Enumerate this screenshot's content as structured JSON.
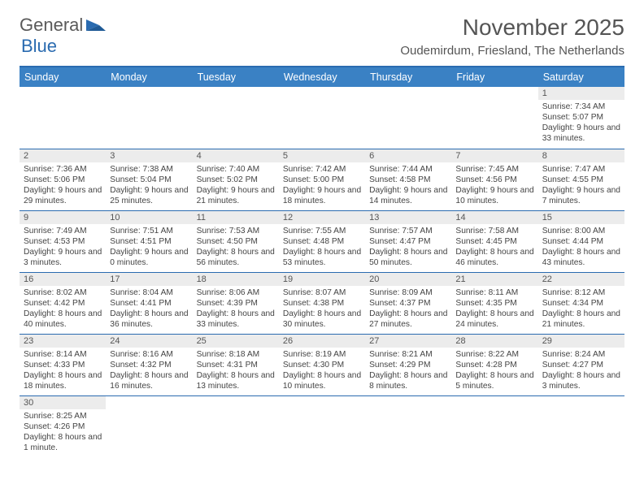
{
  "logo": {
    "part1": "General",
    "part2": "Blue"
  },
  "title": "November 2025",
  "location": "Oudemirdum, Friesland, The Netherlands",
  "colors": {
    "header_bg": "#3a81c4",
    "divider": "#2a6bb0",
    "daynum_bg": "#ececec",
    "text": "#444444"
  },
  "day_headers": [
    "Sunday",
    "Monday",
    "Tuesday",
    "Wednesday",
    "Thursday",
    "Friday",
    "Saturday"
  ],
  "weeks": [
    [
      null,
      null,
      null,
      null,
      null,
      null,
      {
        "n": "1",
        "sr": "Sunrise: 7:34 AM",
        "ss": "Sunset: 5:07 PM",
        "dl": "Daylight: 9 hours and 33 minutes."
      }
    ],
    [
      {
        "n": "2",
        "sr": "Sunrise: 7:36 AM",
        "ss": "Sunset: 5:06 PM",
        "dl": "Daylight: 9 hours and 29 minutes."
      },
      {
        "n": "3",
        "sr": "Sunrise: 7:38 AM",
        "ss": "Sunset: 5:04 PM",
        "dl": "Daylight: 9 hours and 25 minutes."
      },
      {
        "n": "4",
        "sr": "Sunrise: 7:40 AM",
        "ss": "Sunset: 5:02 PM",
        "dl": "Daylight: 9 hours and 21 minutes."
      },
      {
        "n": "5",
        "sr": "Sunrise: 7:42 AM",
        "ss": "Sunset: 5:00 PM",
        "dl": "Daylight: 9 hours and 18 minutes."
      },
      {
        "n": "6",
        "sr": "Sunrise: 7:44 AM",
        "ss": "Sunset: 4:58 PM",
        "dl": "Daylight: 9 hours and 14 minutes."
      },
      {
        "n": "7",
        "sr": "Sunrise: 7:45 AM",
        "ss": "Sunset: 4:56 PM",
        "dl": "Daylight: 9 hours and 10 minutes."
      },
      {
        "n": "8",
        "sr": "Sunrise: 7:47 AM",
        "ss": "Sunset: 4:55 PM",
        "dl": "Daylight: 9 hours and 7 minutes."
      }
    ],
    [
      {
        "n": "9",
        "sr": "Sunrise: 7:49 AM",
        "ss": "Sunset: 4:53 PM",
        "dl": "Daylight: 9 hours and 3 minutes."
      },
      {
        "n": "10",
        "sr": "Sunrise: 7:51 AM",
        "ss": "Sunset: 4:51 PM",
        "dl": "Daylight: 9 hours and 0 minutes."
      },
      {
        "n": "11",
        "sr": "Sunrise: 7:53 AM",
        "ss": "Sunset: 4:50 PM",
        "dl": "Daylight: 8 hours and 56 minutes."
      },
      {
        "n": "12",
        "sr": "Sunrise: 7:55 AM",
        "ss": "Sunset: 4:48 PM",
        "dl": "Daylight: 8 hours and 53 minutes."
      },
      {
        "n": "13",
        "sr": "Sunrise: 7:57 AM",
        "ss": "Sunset: 4:47 PM",
        "dl": "Daylight: 8 hours and 50 minutes."
      },
      {
        "n": "14",
        "sr": "Sunrise: 7:58 AM",
        "ss": "Sunset: 4:45 PM",
        "dl": "Daylight: 8 hours and 46 minutes."
      },
      {
        "n": "15",
        "sr": "Sunrise: 8:00 AM",
        "ss": "Sunset: 4:44 PM",
        "dl": "Daylight: 8 hours and 43 minutes."
      }
    ],
    [
      {
        "n": "16",
        "sr": "Sunrise: 8:02 AM",
        "ss": "Sunset: 4:42 PM",
        "dl": "Daylight: 8 hours and 40 minutes."
      },
      {
        "n": "17",
        "sr": "Sunrise: 8:04 AM",
        "ss": "Sunset: 4:41 PM",
        "dl": "Daylight: 8 hours and 36 minutes."
      },
      {
        "n": "18",
        "sr": "Sunrise: 8:06 AM",
        "ss": "Sunset: 4:39 PM",
        "dl": "Daylight: 8 hours and 33 minutes."
      },
      {
        "n": "19",
        "sr": "Sunrise: 8:07 AM",
        "ss": "Sunset: 4:38 PM",
        "dl": "Daylight: 8 hours and 30 minutes."
      },
      {
        "n": "20",
        "sr": "Sunrise: 8:09 AM",
        "ss": "Sunset: 4:37 PM",
        "dl": "Daylight: 8 hours and 27 minutes."
      },
      {
        "n": "21",
        "sr": "Sunrise: 8:11 AM",
        "ss": "Sunset: 4:35 PM",
        "dl": "Daylight: 8 hours and 24 minutes."
      },
      {
        "n": "22",
        "sr": "Sunrise: 8:12 AM",
        "ss": "Sunset: 4:34 PM",
        "dl": "Daylight: 8 hours and 21 minutes."
      }
    ],
    [
      {
        "n": "23",
        "sr": "Sunrise: 8:14 AM",
        "ss": "Sunset: 4:33 PM",
        "dl": "Daylight: 8 hours and 18 minutes."
      },
      {
        "n": "24",
        "sr": "Sunrise: 8:16 AM",
        "ss": "Sunset: 4:32 PM",
        "dl": "Daylight: 8 hours and 16 minutes."
      },
      {
        "n": "25",
        "sr": "Sunrise: 8:18 AM",
        "ss": "Sunset: 4:31 PM",
        "dl": "Daylight: 8 hours and 13 minutes."
      },
      {
        "n": "26",
        "sr": "Sunrise: 8:19 AM",
        "ss": "Sunset: 4:30 PM",
        "dl": "Daylight: 8 hours and 10 minutes."
      },
      {
        "n": "27",
        "sr": "Sunrise: 8:21 AM",
        "ss": "Sunset: 4:29 PM",
        "dl": "Daylight: 8 hours and 8 minutes."
      },
      {
        "n": "28",
        "sr": "Sunrise: 8:22 AM",
        "ss": "Sunset: 4:28 PM",
        "dl": "Daylight: 8 hours and 5 minutes."
      },
      {
        "n": "29",
        "sr": "Sunrise: 8:24 AM",
        "ss": "Sunset: 4:27 PM",
        "dl": "Daylight: 8 hours and 3 minutes."
      }
    ],
    [
      {
        "n": "30",
        "sr": "Sunrise: 8:25 AM",
        "ss": "Sunset: 4:26 PM",
        "dl": "Daylight: 8 hours and 1 minute."
      },
      null,
      null,
      null,
      null,
      null,
      null
    ]
  ]
}
